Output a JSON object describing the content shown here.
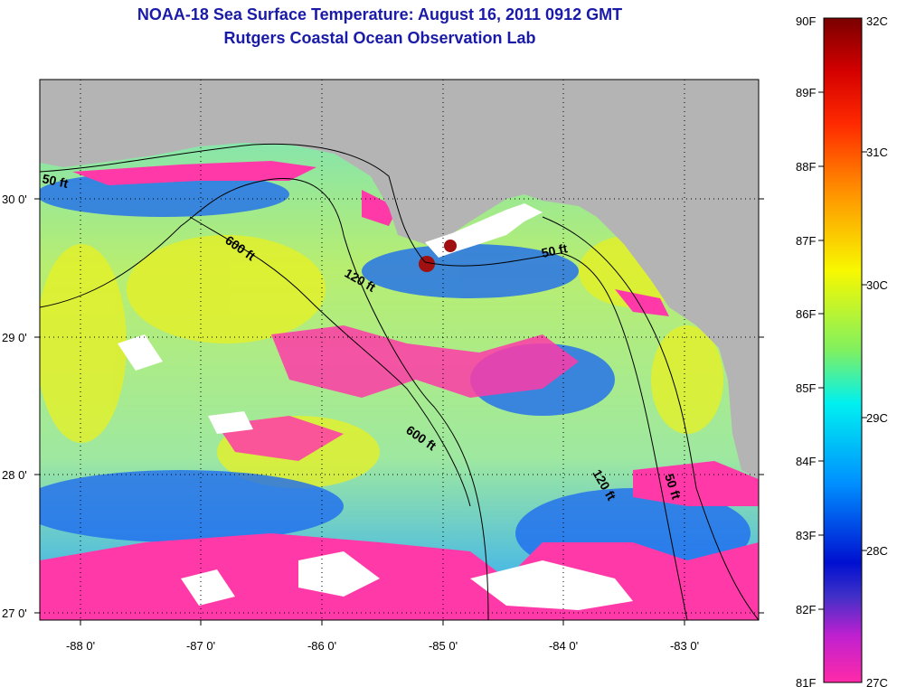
{
  "title": "NOAA-18 Sea Surface Temperature:  August 16, 2011 0912 GMT",
  "subtitle": "Rutgers Coastal Ocean Observation Lab",
  "lon_labels": [
    "-88 0'",
    "-87 0'",
    "-86 0'",
    "-85 0'",
    "-84 0'",
    "-83 0'"
  ],
  "lat_labels": [
    "30 0'",
    "29 0'",
    "28 0'",
    "27 0'"
  ],
  "contour_labels": [
    "50 ft",
    "600 ft",
    "120 ft",
    "50 ft",
    "600 ft",
    "120 ft",
    "50 ft"
  ],
  "legend": {
    "fahrenheit": [
      "90F",
      "89F",
      "88F",
      "87F",
      "86F",
      "85F",
      "84F",
      "83F",
      "82F",
      "81F"
    ],
    "celsius": [
      "32C",
      "31C",
      "30C",
      "29C",
      "28C",
      "27C"
    ]
  },
  "colors": {
    "land": "#b4b4b4",
    "cloud": "#ffffff",
    "title": "#1a1aa8"
  }
}
